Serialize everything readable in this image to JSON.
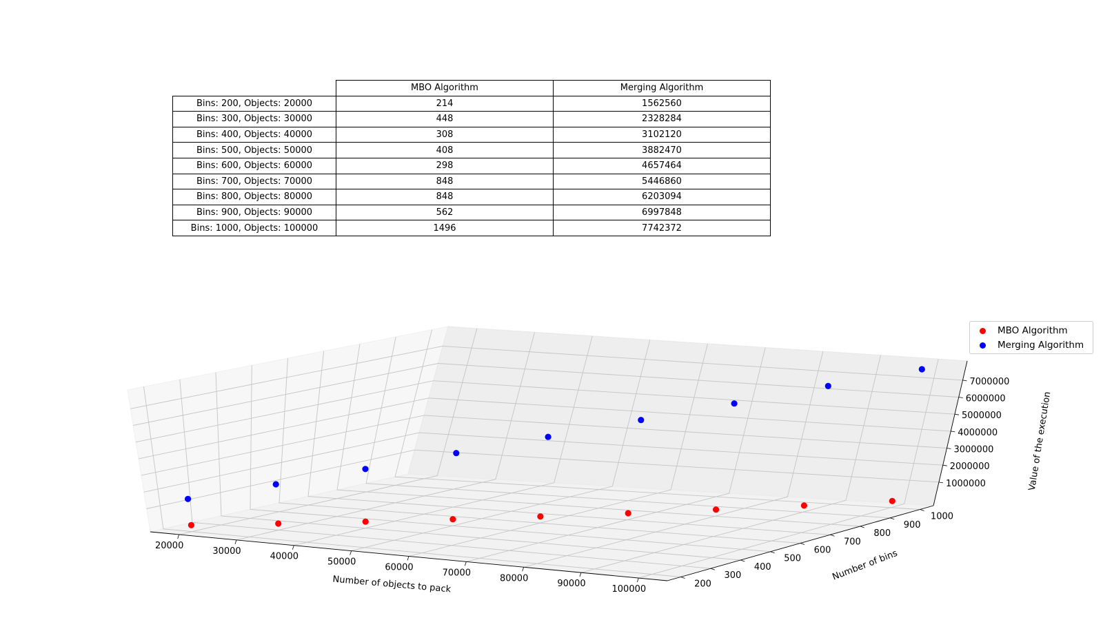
{
  "chart_data": {
    "type": "scatter3d",
    "table": {
      "columns": [
        "MBO Algorithm",
        "Merging Algorithm"
      ],
      "rows": [
        {
          "label": "Bins: 200, Objects: 20000",
          "mbo": "214",
          "merging": "1562560"
        },
        {
          "label": "Bins: 300, Objects: 30000",
          "mbo": "448",
          "merging": "2328284"
        },
        {
          "label": "Bins: 400, Objects: 40000",
          "mbo": "308",
          "merging": "3102120"
        },
        {
          "label": "Bins: 500, Objects: 50000",
          "mbo": "408",
          "merging": "3882470"
        },
        {
          "label": "Bins: 600, Objects: 60000",
          "mbo": "298",
          "merging": "4657464"
        },
        {
          "label": "Bins: 700, Objects: 70000",
          "mbo": "848",
          "merging": "5446860"
        },
        {
          "label": "Bins: 800, Objects: 80000",
          "mbo": "848",
          "merging": "6203094"
        },
        {
          "label": "Bins: 900, Objects: 90000",
          "mbo": "562",
          "merging": "6997848"
        },
        {
          "label": "Bins: 1000, Objects: 100000",
          "mbo": "1496",
          "merging": "7742372"
        }
      ]
    },
    "xlabel": "Number of objects to pack",
    "ylabel": "Number of bins",
    "zlabel": "Value of the execution",
    "x_ticks": [
      "20000",
      "30000",
      "40000",
      "50000",
      "60000",
      "70000",
      "80000",
      "90000",
      "100000"
    ],
    "y_ticks": [
      "200",
      "300",
      "400",
      "500",
      "600",
      "700",
      "800",
      "900",
      "1000"
    ],
    "z_ticks": [
      "1000000",
      "2000000",
      "3000000",
      "4000000",
      "5000000",
      "6000000",
      "7000000"
    ],
    "series": [
      {
        "name": "MBO Algorithm",
        "color": "#ff0000",
        "objects": [
          20000,
          30000,
          40000,
          50000,
          60000,
          70000,
          80000,
          90000,
          100000
        ],
        "bins": [
          200,
          300,
          400,
          500,
          600,
          700,
          800,
          900,
          1000
        ],
        "values": [
          214,
          448,
          308,
          408,
          298,
          848,
          848,
          562,
          1496
        ]
      },
      {
        "name": "Merging Algorithm",
        "color": "#0000ff",
        "objects": [
          20000,
          30000,
          40000,
          50000,
          60000,
          70000,
          80000,
          90000,
          100000
        ],
        "bins": [
          200,
          300,
          400,
          500,
          600,
          700,
          800,
          900,
          1000
        ],
        "values": [
          1562560,
          2328284,
          3102120,
          3882470,
          4657464,
          5446860,
          6203094,
          6997848,
          7742372
        ]
      }
    ],
    "legend": "top-right",
    "grid": true
  }
}
